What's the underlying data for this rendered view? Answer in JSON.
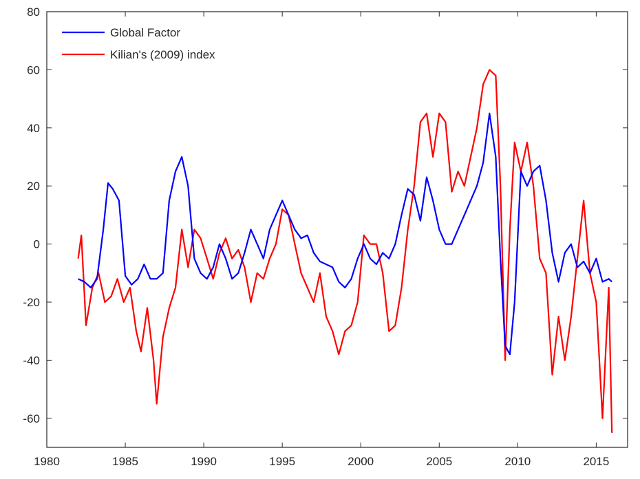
{
  "chart_data": {
    "type": "line",
    "title": "",
    "xlabel": "",
    "ylabel": "",
    "xlim": [
      1980,
      2017
    ],
    "ylim": [
      -70,
      80
    ],
    "x_ticks": [
      1980,
      1985,
      1990,
      1995,
      2000,
      2005,
      2010,
      2015
    ],
    "x_tick_labels": [
      "1980",
      "1985",
      "1990",
      "1995",
      "2000",
      "2005",
      "2010",
      "2015"
    ],
    "y_ticks": [
      -60,
      -40,
      -20,
      0,
      20,
      40,
      60,
      80
    ],
    "y_tick_labels": [
      "-60",
      "-40",
      "-20",
      "0",
      "20",
      "40",
      "60",
      "80"
    ],
    "grid": false,
    "legend_position": "top-left",
    "series": [
      {
        "name": "Global Factor",
        "color": "#0000ff",
        "points": [
          [
            1982.0,
            -12
          ],
          [
            1982.4,
            -13
          ],
          [
            1982.8,
            -15
          ],
          [
            1983.2,
            -12
          ],
          [
            1983.6,
            5
          ],
          [
            1983.9,
            21
          ],
          [
            1984.2,
            19
          ],
          [
            1984.6,
            15
          ],
          [
            1985.0,
            -11
          ],
          [
            1985.4,
            -14
          ],
          [
            1985.8,
            -12
          ],
          [
            1986.2,
            -7
          ],
          [
            1986.6,
            -12
          ],
          [
            1987.0,
            -12
          ],
          [
            1987.4,
            -10
          ],
          [
            1987.8,
            15
          ],
          [
            1988.2,
            25
          ],
          [
            1988.6,
            30
          ],
          [
            1989.0,
            20
          ],
          [
            1989.4,
            -5
          ],
          [
            1989.8,
            -10
          ],
          [
            1990.2,
            -12
          ],
          [
            1990.6,
            -8
          ],
          [
            1991.0,
            0
          ],
          [
            1991.4,
            -5
          ],
          [
            1991.8,
            -12
          ],
          [
            1992.2,
            -10
          ],
          [
            1992.6,
            -3
          ],
          [
            1993.0,
            5
          ],
          [
            1993.4,
            0
          ],
          [
            1993.8,
            -5
          ],
          [
            1994.2,
            5
          ],
          [
            1994.6,
            10
          ],
          [
            1995.0,
            15
          ],
          [
            1995.4,
            10
          ],
          [
            1995.8,
            5
          ],
          [
            1996.2,
            2
          ],
          [
            1996.6,
            3
          ],
          [
            1997.0,
            -3
          ],
          [
            1997.4,
            -6
          ],
          [
            1997.8,
            -7
          ],
          [
            1998.2,
            -8
          ],
          [
            1998.6,
            -13
          ],
          [
            1999.0,
            -15
          ],
          [
            1999.4,
            -12
          ],
          [
            1999.8,
            -5
          ],
          [
            2000.2,
            0
          ],
          [
            2000.6,
            -5
          ],
          [
            2001.0,
            -7
          ],
          [
            2001.4,
            -3
          ],
          [
            2001.8,
            -5
          ],
          [
            2002.2,
            0
          ],
          [
            2002.6,
            10
          ],
          [
            2003.0,
            19
          ],
          [
            2003.4,
            17
          ],
          [
            2003.8,
            8
          ],
          [
            2004.2,
            23
          ],
          [
            2004.6,
            15
          ],
          [
            2005.0,
            5
          ],
          [
            2005.4,
            0
          ],
          [
            2005.8,
            0
          ],
          [
            2006.2,
            5
          ],
          [
            2006.6,
            10
          ],
          [
            2007.0,
            15
          ],
          [
            2007.4,
            20
          ],
          [
            2007.8,
            28
          ],
          [
            2008.2,
            45
          ],
          [
            2008.6,
            30
          ],
          [
            2008.9,
            -5
          ],
          [
            2009.2,
            -35
          ],
          [
            2009.5,
            -38
          ],
          [
            2009.8,
            -20
          ],
          [
            2010.2,
            25
          ],
          [
            2010.6,
            20
          ],
          [
            2011.0,
            25
          ],
          [
            2011.4,
            27
          ],
          [
            2011.8,
            15
          ],
          [
            2012.2,
            -3
          ],
          [
            2012.6,
            -13
          ],
          [
            2013.0,
            -3
          ],
          [
            2013.4,
            0
          ],
          [
            2013.8,
            -8
          ],
          [
            2014.2,
            -6
          ],
          [
            2014.6,
            -10
          ],
          [
            2015.0,
            -5
          ],
          [
            2015.4,
            -13
          ],
          [
            2015.8,
            -12
          ],
          [
            2016.0,
            -13
          ]
        ]
      },
      {
        "name": "Kilian's (2009) index",
        "color": "#ff0000",
        "points": [
          [
            1982.0,
            -5
          ],
          [
            1982.2,
            3
          ],
          [
            1982.5,
            -28
          ],
          [
            1982.9,
            -15
          ],
          [
            1983.3,
            -10
          ],
          [
            1983.7,
            -20
          ],
          [
            1984.1,
            -18
          ],
          [
            1984.5,
            -12
          ],
          [
            1984.9,
            -20
          ],
          [
            1985.3,
            -15
          ],
          [
            1985.7,
            -30
          ],
          [
            1986.0,
            -37
          ],
          [
            1986.4,
            -22
          ],
          [
            1986.8,
            -40
          ],
          [
            1987.0,
            -55
          ],
          [
            1987.4,
            -32
          ],
          [
            1987.8,
            -22
          ],
          [
            1988.2,
            -15
          ],
          [
            1988.6,
            5
          ],
          [
            1989.0,
            -8
          ],
          [
            1989.4,
            5
          ],
          [
            1989.8,
            2
          ],
          [
            1990.2,
            -5
          ],
          [
            1990.6,
            -12
          ],
          [
            1991.0,
            -3
          ],
          [
            1991.4,
            2
          ],
          [
            1991.8,
            -5
          ],
          [
            1992.2,
            -2
          ],
          [
            1992.6,
            -8
          ],
          [
            1993.0,
            -20
          ],
          [
            1993.4,
            -10
          ],
          [
            1993.8,
            -12
          ],
          [
            1994.2,
            -5
          ],
          [
            1994.6,
            0
          ],
          [
            1995.0,
            12
          ],
          [
            1995.4,
            10
          ],
          [
            1995.8,
            0
          ],
          [
            1996.2,
            -10
          ],
          [
            1996.6,
            -15
          ],
          [
            1997.0,
            -20
          ],
          [
            1997.4,
            -10
          ],
          [
            1997.8,
            -25
          ],
          [
            1998.2,
            -30
          ],
          [
            1998.6,
            -38
          ],
          [
            1999.0,
            -30
          ],
          [
            1999.4,
            -28
          ],
          [
            1999.8,
            -20
          ],
          [
            2000.2,
            3
          ],
          [
            2000.6,
            0
          ],
          [
            2001.0,
            0
          ],
          [
            2001.4,
            -10
          ],
          [
            2001.8,
            -30
          ],
          [
            2002.2,
            -28
          ],
          [
            2002.6,
            -15
          ],
          [
            2003.0,
            5
          ],
          [
            2003.4,
            20
          ],
          [
            2003.8,
            42
          ],
          [
            2004.2,
            45
          ],
          [
            2004.6,
            30
          ],
          [
            2005.0,
            45
          ],
          [
            2005.4,
            42
          ],
          [
            2005.8,
            18
          ],
          [
            2006.2,
            25
          ],
          [
            2006.6,
            20
          ],
          [
            2007.0,
            30
          ],
          [
            2007.4,
            40
          ],
          [
            2007.8,
            55
          ],
          [
            2008.2,
            60
          ],
          [
            2008.6,
            58
          ],
          [
            2008.9,
            20
          ],
          [
            2009.2,
            -40
          ],
          [
            2009.5,
            5
          ],
          [
            2009.8,
            35
          ],
          [
            2010.2,
            25
          ],
          [
            2010.6,
            35
          ],
          [
            2011.0,
            20
          ],
          [
            2011.4,
            -5
          ],
          [
            2011.8,
            -10
          ],
          [
            2012.2,
            -45
          ],
          [
            2012.6,
            -25
          ],
          [
            2013.0,
            -40
          ],
          [
            2013.4,
            -25
          ],
          [
            2013.8,
            -5
          ],
          [
            2014.2,
            15
          ],
          [
            2014.6,
            -10
          ],
          [
            2015.0,
            -20
          ],
          [
            2015.4,
            -60
          ],
          [
            2015.8,
            -15
          ],
          [
            2016.0,
            -65
          ]
        ]
      }
    ]
  }
}
